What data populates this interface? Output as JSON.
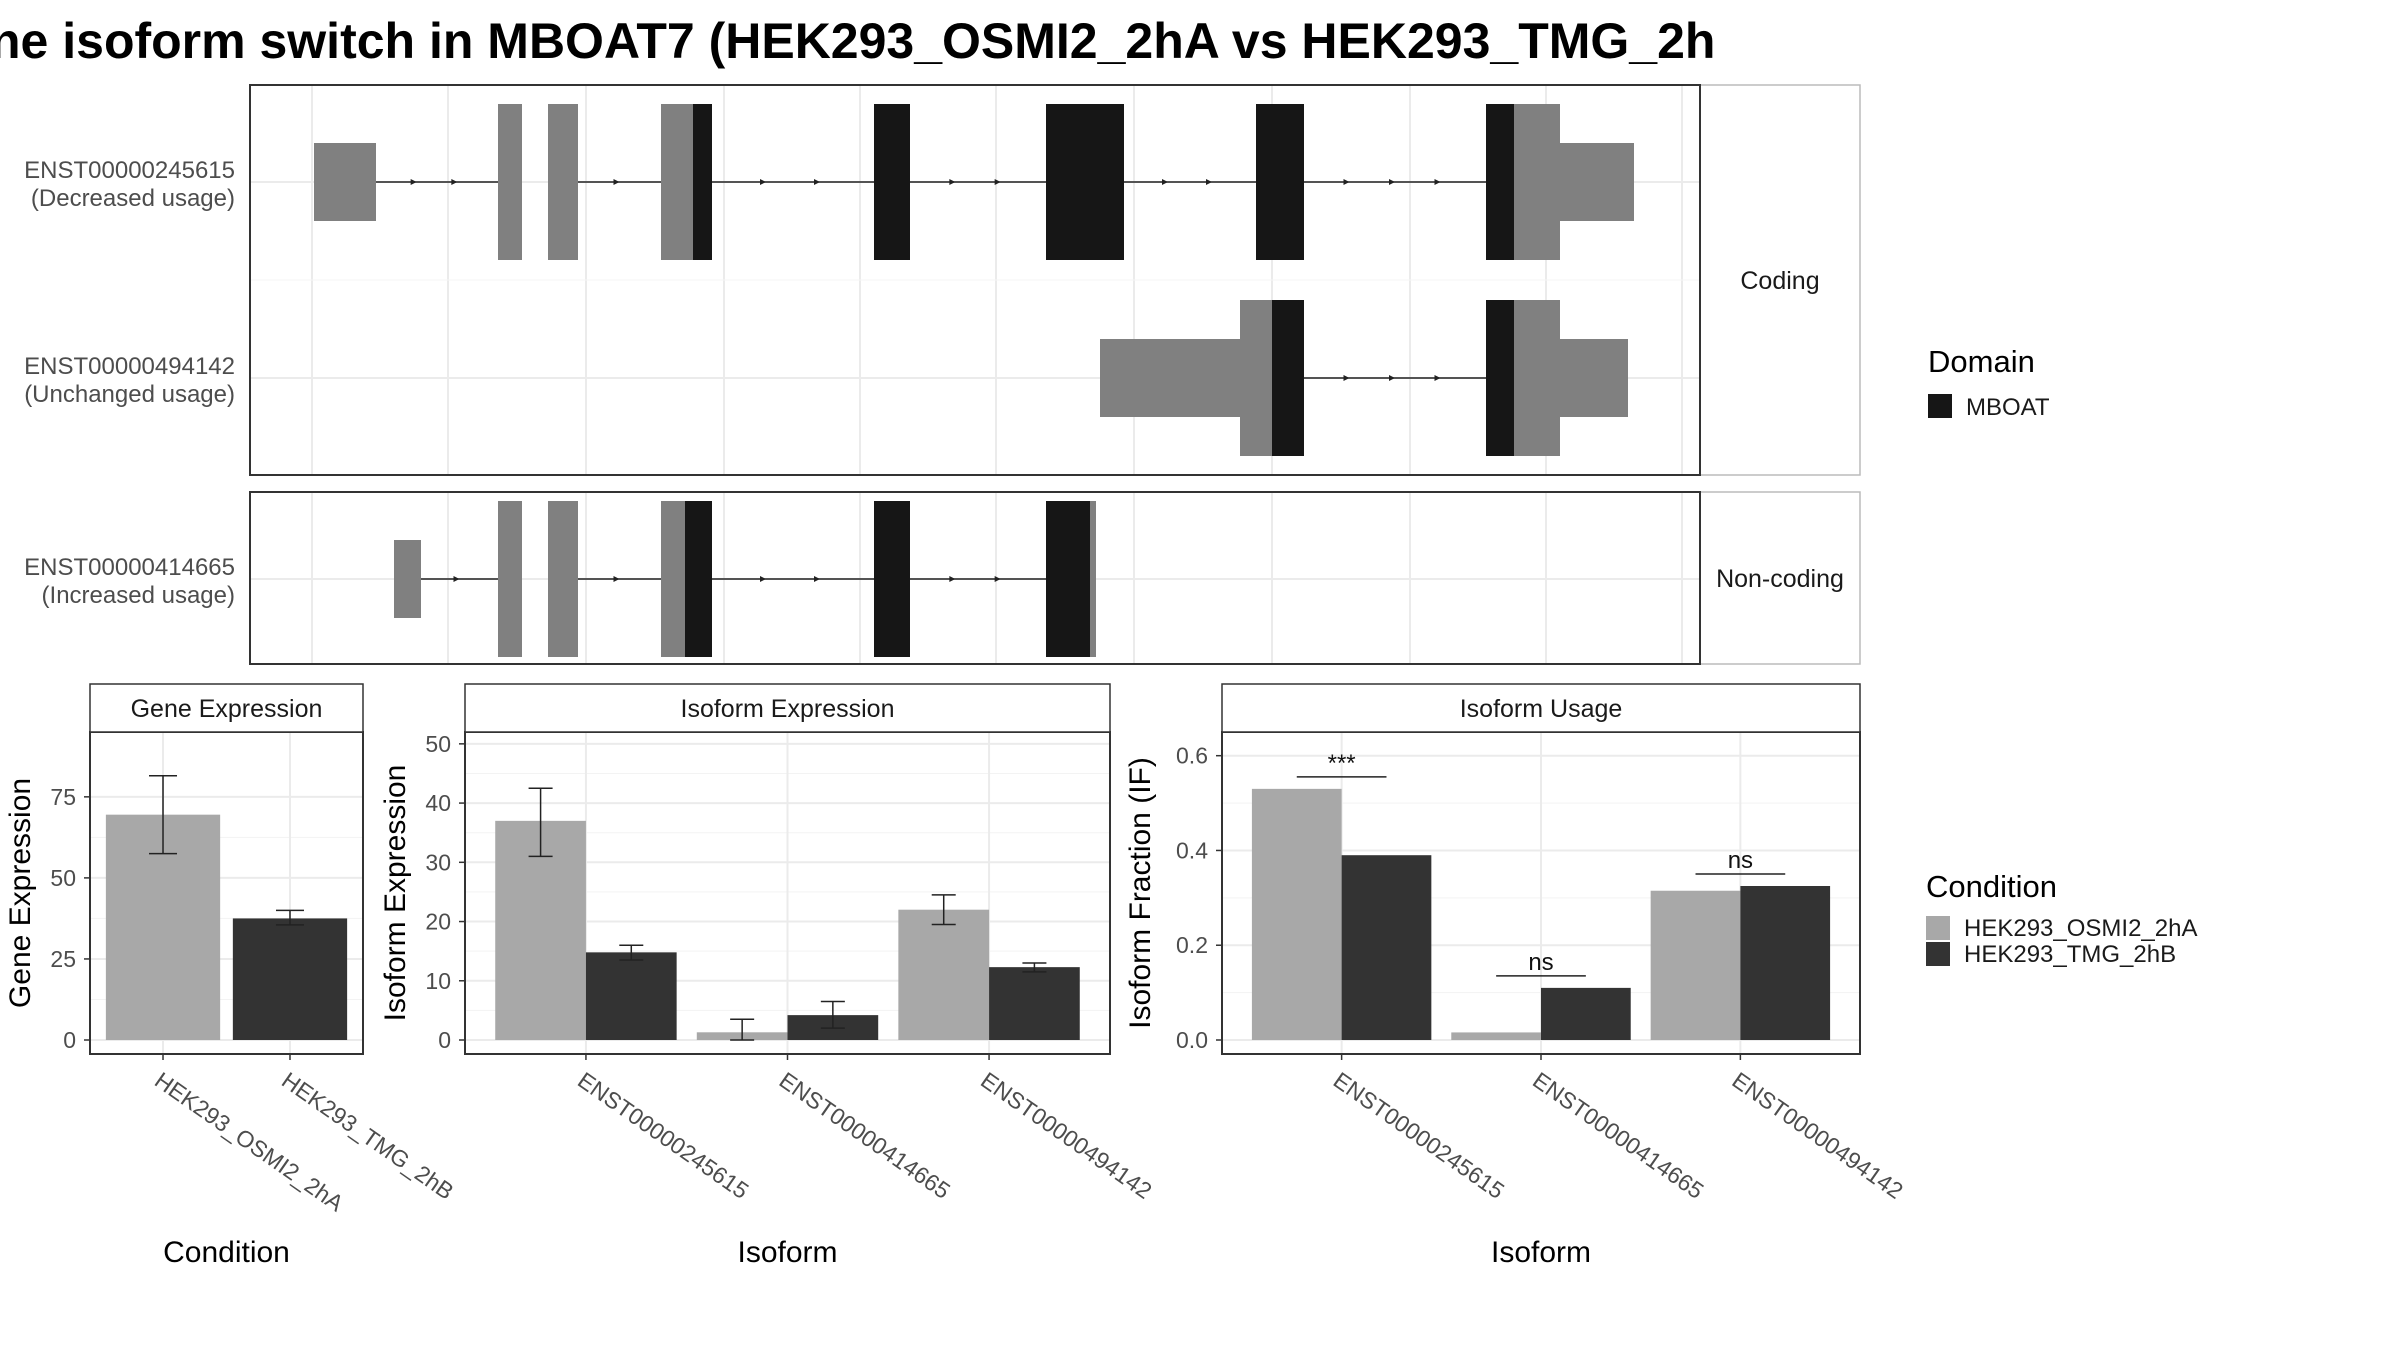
{
  "title": "ne isoform switch in MBOAT7 (HEK293_OSMI2_2hA vs HEK293_TMG_2h",
  "colors": {
    "condition_a": "#a8a8a8",
    "condition_b": "#333333",
    "utr": "#808080",
    "domain": "#161616",
    "grid": "#ebebeb",
    "frame": "#333333"
  },
  "structure": {
    "facets": [
      {
        "label": "Coding",
        "rows": [
          {
            "id": "ENST00000245615",
            "usage": "(Decreased usage)"
          },
          {
            "id": "ENST00000494142",
            "usage": "(Unchanged usage)"
          }
        ]
      },
      {
        "label": "Non-coding",
        "rows": [
          {
            "id": "ENST00000414665",
            "usage": "(Increased usage)"
          }
        ]
      }
    ],
    "legend_title": "Domain",
    "legend_items": [
      {
        "label": "MBOAT",
        "color": "#161616"
      }
    ]
  },
  "condition_legend": {
    "title": "Condition",
    "items": [
      {
        "label": "HEK293_OSMI2_2hA",
        "color": "#a8a8a8"
      },
      {
        "label": "HEK293_TMG_2hB",
        "color": "#333333"
      }
    ]
  },
  "chart_data": [
    {
      "type": "bar",
      "title": "Gene Expression",
      "xlabel": "Condition",
      "ylabel": "Gene Expression",
      "ylim": [
        0,
        95
      ],
      "yticks": [
        0,
        25,
        50,
        75
      ],
      "categories": [
        "HEK293_OSMI2_2hA",
        "HEK293_TMG_2hB"
      ],
      "values": [
        69.5,
        37.5
      ],
      "errors": [
        [
          57.5,
          81.5
        ],
        [
          35.5,
          40
        ]
      ],
      "grid": true
    },
    {
      "type": "bar",
      "title": "Isoform Expression",
      "xlabel": "Isoform",
      "ylabel": "Isoform Expression",
      "ylim": [
        0,
        52
      ],
      "yticks": [
        0,
        10,
        20,
        30,
        40,
        50
      ],
      "categories": [
        "ENST00000245615",
        "ENST00000414665",
        "ENST00000494142"
      ],
      "series": [
        {
          "name": "HEK293_OSMI2_2hA",
          "values": [
            37,
            1.3,
            22
          ],
          "errors": [
            [
              31,
              42.5
            ],
            [
              0,
              3.5
            ],
            [
              19.5,
              24.5
            ]
          ]
        },
        {
          "name": "HEK293_TMG_2hB",
          "values": [
            14.8,
            4.2,
            12.3
          ],
          "errors": [
            [
              13.5,
              16
            ],
            [
              2,
              6.5
            ],
            [
              11.5,
              13
            ]
          ]
        }
      ],
      "grid": true
    },
    {
      "type": "bar",
      "title": "Isoform Usage",
      "xlabel": "Isoform",
      "ylabel": "Isoform Fraction (IF)",
      "ylim": [
        0,
        0.65
      ],
      "yticks": [
        0.0,
        0.2,
        0.4,
        0.6
      ],
      "ytick_labels": [
        "0.0",
        "0.2",
        "0.4",
        "0.6"
      ],
      "categories": [
        "ENST00000245615",
        "ENST00000414665",
        "ENST00000494142"
      ],
      "series": [
        {
          "name": "HEK293_OSMI2_2hA",
          "values": [
            0.53,
            0.016,
            0.315
          ]
        },
        {
          "name": "HEK293_TMG_2hB",
          "values": [
            0.39,
            0.11,
            0.325
          ]
        }
      ],
      "annotations": [
        "***",
        "ns",
        "ns"
      ],
      "grid": true
    }
  ]
}
